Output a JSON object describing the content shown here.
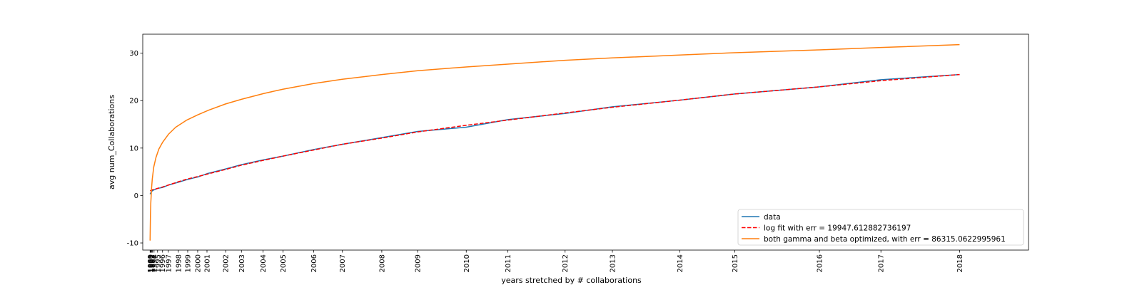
{
  "chart_data": {
    "type": "line",
    "title": "",
    "xlabel": "years stretched by # collaborations",
    "ylabel": "avg num_Collaborations",
    "ylim": [
      -11.5,
      34
    ],
    "yticks": [
      -10,
      0,
      10,
      20,
      30
    ],
    "xlim": [
      -10,
      1198
    ],
    "xticks": [
      {
        "label": "1989",
        "x": 0
      },
      {
        "label": "1990",
        "x": 0.5
      },
      {
        "label": "1991",
        "x": 1.2
      },
      {
        "label": "1992",
        "x": 2.0
      },
      {
        "label": "1993",
        "x": 3.0
      },
      {
        "label": "1994",
        "x": 5.4
      },
      {
        "label": "1995",
        "x": 10.2
      },
      {
        "label": "1996",
        "x": 17.0
      },
      {
        "label": "1997",
        "x": 24.9
      },
      {
        "label": "1998",
        "x": 38.6
      },
      {
        "label": "1999",
        "x": 51.3
      },
      {
        "label": "2000",
        "x": 64.9
      },
      {
        "label": "2001",
        "x": 77.6
      },
      {
        "label": "2002",
        "x": 103.1
      },
      {
        "label": "2003",
        "x": 124.6
      },
      {
        "label": "2004",
        "x": 153.9
      },
      {
        "label": "2005",
        "x": 181.2
      },
      {
        "label": "2006",
        "x": 223.2
      },
      {
        "label": "2007",
        "x": 262.3
      },
      {
        "label": "2008",
        "x": 316.0
      },
      {
        "label": "2009",
        "x": 364.8
      },
      {
        "label": "2010",
        "x": 431.2
      },
      {
        "label": "2011",
        "x": 487.9
      },
      {
        "label": "2012",
        "x": 566.0
      },
      {
        "label": "2013",
        "x": 630.5
      },
      {
        "label": "2014",
        "x": 722.3
      },
      {
        "label": "2015",
        "x": 797.5
      },
      {
        "label": "2016",
        "x": 912.8
      },
      {
        "label": "2017",
        "x": 996.7
      },
      {
        "label": "2018",
        "x": 1104.1
      }
    ],
    "series": [
      {
        "name": "data",
        "color": "#1f77b4",
        "style": "solid",
        "x": [
          0,
          1,
          2,
          3,
          5.4,
          10.2,
          17,
          24.9,
          38.6,
          51.3,
          64.9,
          77.6,
          103.1,
          124.6,
          153.9,
          181.2,
          223.2,
          262.3,
          316,
          364.8,
          431.2,
          487.9,
          566,
          630.5,
          722.3,
          797.5,
          912.8,
          996.7,
          1104.1
        ],
        "y": [
          0.3,
          0.6,
          0.8,
          1.0,
          1.2,
          1.5,
          1.7,
          2.2,
          2.8,
          3.4,
          3.9,
          4.6,
          5.6,
          6.5,
          7.5,
          8.3,
          9.7,
          10.8,
          12.2,
          13.5,
          14.4,
          16.0,
          17.3,
          18.7,
          20.1,
          21.4,
          22.9,
          24.4,
          25.5
        ]
      },
      {
        "name": "log fit with err = 19947.612882736197",
        "color": "#ff0000",
        "style": "dashed",
        "x": [
          0,
          3,
          10.2,
          17,
          24.9,
          38.6,
          51.3,
          64.9,
          77.6,
          103.1,
          124.6,
          153.9,
          181.2,
          223.2,
          262.3,
          316,
          364.8,
          431.2,
          487.9,
          566,
          630.5,
          722.3,
          797.5,
          912.8,
          996.7,
          1104.1
        ],
        "y": [
          1.0,
          1.2,
          1.5,
          1.8,
          2.2,
          2.9,
          3.5,
          4.0,
          4.5,
          5.5,
          6.4,
          7.4,
          8.3,
          9.6,
          10.8,
          12.1,
          13.4,
          14.8,
          15.9,
          17.4,
          18.6,
          20.1,
          21.4,
          22.9,
          24.2,
          25.5
        ]
      },
      {
        "name": "both gamma and beta optimized, with err = 86315.0622995961",
        "color": "#ff7f0e",
        "style": "solid",
        "x": [
          0,
          0.5,
          1,
          2,
          3,
          5,
          8,
          12,
          17,
          25,
          35,
          50,
          65,
          80,
          103,
          125,
          155,
          181,
          223,
          262,
          316,
          365,
          431,
          488,
          566,
          630,
          722,
          797,
          913,
          997,
          1104
        ],
        "y": [
          -9.5,
          -4.0,
          -1.5,
          1.5,
          3.5,
          6.0,
          8.0,
          9.8,
          11.2,
          12.9,
          14.4,
          15.9,
          17.0,
          18.0,
          19.3,
          20.3,
          21.5,
          22.4,
          23.6,
          24.5,
          25.5,
          26.3,
          27.1,
          27.7,
          28.5,
          29.0,
          29.6,
          30.1,
          30.7,
          31.2,
          31.8
        ]
      }
    ],
    "legend_position": "bottom-right",
    "grid": false
  }
}
